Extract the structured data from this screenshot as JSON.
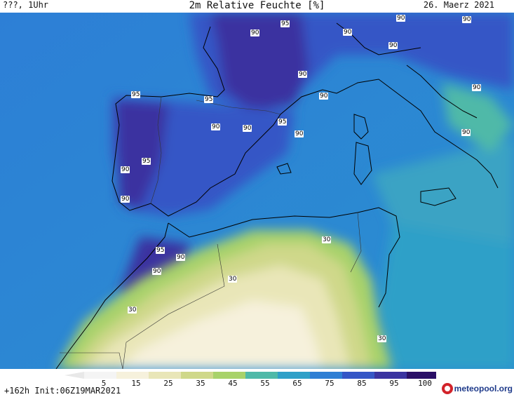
{
  "header": {
    "left": "???, 1Uhr",
    "title": "2m Relative Feuchte [%]",
    "date": "26. Maerz 2021"
  },
  "map": {
    "labels": [
      "90",
      "95",
      "90",
      "90",
      "90",
      "90",
      "90",
      "95",
      "95",
      "90",
      "90",
      "95",
      "90",
      "90",
      "90",
      "90",
      "95",
      "90",
      "90",
      "95",
      "90",
      "30",
      "30",
      "30",
      "30"
    ]
  },
  "legend": {
    "ticks": [
      "5",
      "15",
      "25",
      "35",
      "45",
      "55",
      "65",
      "75",
      "85",
      "95",
      "100"
    ],
    "colors": [
      "#f4f4f4",
      "#f6f1dc",
      "#e9e6b8",
      "#cfd88a",
      "#a8d26a",
      "#4fb9a8",
      "#2fa0c8",
      "#2f7fd4",
      "#3556c6",
      "#3a33a0",
      "#2a0f66"
    ]
  },
  "footer": {
    "left": "+162h  Init:06Z19MAR2021",
    "logo": "meteopool.org"
  }
}
